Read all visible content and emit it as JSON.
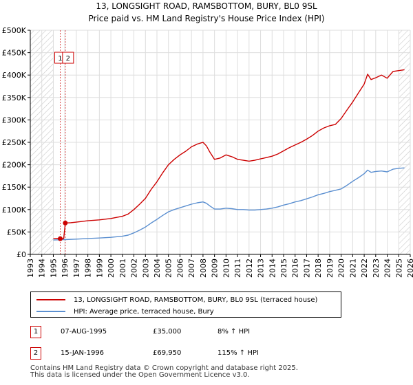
{
  "chart_data": {
    "type": "line",
    "title": "13, LONGSIGHT ROAD, RAMSBOTTOM, BURY, BL0 9SL",
    "subtitle": "Price paid vs. HM Land Registry's House Price Index (HPI)",
    "xlim": [
      1993,
      2026
    ],
    "ylim": [
      0,
      500000
    ],
    "x_ticks": [
      1993,
      1994,
      1995,
      1996,
      1997,
      1998,
      1999,
      2000,
      2001,
      2002,
      2003,
      2004,
      2005,
      2006,
      2007,
      2008,
      2009,
      2010,
      2011,
      2012,
      2013,
      2014,
      2015,
      2016,
      2017,
      2018,
      2019,
      2020,
      2021,
      2022,
      2023,
      2024,
      2025,
      2026
    ],
    "y_ticks": [
      0,
      50000,
      100000,
      150000,
      200000,
      250000,
      300000,
      350000,
      400000,
      450000,
      500000
    ],
    "y_tick_labels": [
      "£0",
      "£50K",
      "£100K",
      "£150K",
      "£200K",
      "£250K",
      "£300K",
      "£350K",
      "£400K",
      "£450K",
      "£500K"
    ],
    "hatch_before": 1995.0,
    "hatch_after": 2025.0,
    "series": [
      {
        "name": "13, LONGSIGHT ROAD, RAMSBOTTOM, BURY, BL0 9SL (terraced house)",
        "color": "#cc0000",
        "x": [
          1995.0,
          1995.6,
          1995.9,
          1996.04,
          1996.5,
          1997,
          1998,
          1999,
          2000,
          2001,
          2001.5,
          2002,
          2002.5,
          2003,
          2003.5,
          2004,
          2004.5,
          2005,
          2005.5,
          2006,
          2006.5,
          2007,
          2007.5,
          2008,
          2008.3,
          2008.6,
          2009,
          2009.5,
          2010,
          2010.5,
          2011,
          2011.5,
          2012,
          2012.5,
          2013,
          2013.5,
          2014,
          2014.5,
          2015,
          2015.5,
          2016,
          2016.5,
          2017,
          2017.5,
          2018,
          2018.5,
          2019,
          2019.5,
          2020,
          2020.5,
          2021,
          2021.5,
          2022,
          2022.3,
          2022.6,
          2023,
          2023.5,
          2024,
          2024.5,
          2025,
          2025.5
        ],
        "values": [
          35000,
          36000,
          35000,
          69950,
          70500,
          72000,
          75000,
          77000,
          80000,
          85000,
          90000,
          100000,
          112000,
          125000,
          145000,
          162000,
          182000,
          200000,
          212000,
          222000,
          230000,
          240000,
          246000,
          250000,
          242000,
          228000,
          212000,
          215000,
          222000,
          218000,
          212000,
          210000,
          208000,
          210000,
          213000,
          216000,
          219000,
          224000,
          231000,
          238000,
          244000,
          250000,
          257000,
          265000,
          275000,
          282000,
          287000,
          290000,
          303000,
          322000,
          340000,
          360000,
          380000,
          402000,
          390000,
          394000,
          400000,
          393000,
          408000,
          410000,
          412000
        ]
      },
      {
        "name": "HPI: Average price, terraced house, Bury",
        "color": "#5b8fd0",
        "x": [
          1995.0,
          1996,
          1997,
          1998,
          1999,
          2000,
          2001,
          2001.5,
          2002,
          2002.5,
          2003,
          2003.5,
          2004,
          2004.5,
          2005,
          2005.5,
          2006,
          2006.5,
          2007,
          2007.5,
          2008,
          2008.3,
          2008.6,
          2009,
          2009.5,
          2010,
          2010.5,
          2011,
          2011.5,
          2012,
          2012.5,
          2013,
          2013.5,
          2014,
          2014.5,
          2015,
          2015.5,
          2016,
          2016.5,
          2017,
          2017.5,
          2018,
          2018.5,
          2019,
          2019.5,
          2020,
          2020.5,
          2021,
          2021.5,
          2022,
          2022.3,
          2022.6,
          2023,
          2023.5,
          2024,
          2024.5,
          2025,
          2025.5
        ],
        "values": [
          32000,
          33000,
          34000,
          35500,
          36500,
          38000,
          40500,
          43000,
          48000,
          54000,
          61000,
          70000,
          78000,
          87000,
          95000,
          100000,
          104000,
          108000,
          112000,
          115000,
          117000,
          114000,
          108000,
          101000,
          101000,
          103000,
          102000,
          100000,
          100000,
          99000,
          99000,
          100000,
          101000,
          103000,
          106000,
          110000,
          113000,
          117000,
          120000,
          124000,
          128000,
          133000,
          136000,
          140000,
          143000,
          146000,
          154000,
          163000,
          171000,
          180000,
          188000,
          183000,
          185000,
          186000,
          184000,
          190000,
          192000,
          193000
        ]
      }
    ],
    "sales": [
      {
        "id": "1",
        "x": 1995.6,
        "value": 35000
      },
      {
        "id": "2",
        "x": 1996.04,
        "value": 69950
      }
    ]
  },
  "legend": {
    "property_label": "13, LONGSIGHT ROAD, RAMSBOTTOM, BURY, BL0 9SL (terraced house)",
    "hpi_label": "HPI: Average price, terraced house, Bury"
  },
  "sales_table": [
    {
      "id": "1",
      "date": "07-AUG-1995",
      "price": "£35,000",
      "hpi": "8% ↑ HPI"
    },
    {
      "id": "2",
      "date": "15-JAN-1996",
      "price": "£69,950",
      "hpi": "115% ↑ HPI"
    }
  ],
  "footer": {
    "line1": "Contains HM Land Registry data © Crown copyright and database right 2025.",
    "line2": "This data is licensed under the Open Government Licence v3.0."
  },
  "colors": {
    "property": "#cc0000",
    "hpi": "#5b8fd0",
    "grid": "#dddddd",
    "hatch": "#c8c8c8",
    "sale_marker": "#cc0000"
  }
}
